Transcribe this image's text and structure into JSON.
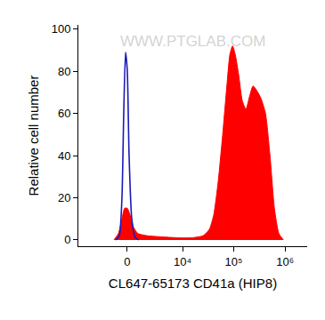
{
  "chart_data": {
    "type": "histogram",
    "xlabel": "CL647-65173 CD41a (HIP8)",
    "ylabel": "Relative cell number",
    "annotations": [
      {
        "text": "WWW.PTGLAB.COM"
      }
    ],
    "xlim": [
      -7500,
      2700000
    ],
    "xticks": [
      0,
      {
        "value": 10000,
        "label": "10⁴"
      },
      {
        "value": 100000,
        "label": "10⁵"
      },
      {
        "value": 1000000,
        "label": "10⁶"
      }
    ],
    "ylim": [
      -3,
      102
    ],
    "yticks": [
      0,
      20,
      40,
      60,
      80,
      100
    ],
    "grid": false,
    "series": [
      {
        "type": "area",
        "color": "#ff0000",
        "x": [
          -1076,
          -694,
          -410,
          -203,
          0,
          203,
          479,
          843,
          1694,
          3437,
          8218,
          15044,
          25306,
          33500,
          40900,
          50000,
          61000,
          74700,
          84200,
          95000,
          107000,
          125400,
          147000,
          173000,
          203000,
          238000,
          279000,
          341000,
          416000,
          509000,
          621000,
          758000,
          927000
        ],
        "values": [
          0,
          3,
          10,
          15,
          15,
          12,
          6,
          3,
          2,
          1.5,
          1,
          1,
          2,
          5,
          12,
          28,
          50,
          75,
          88,
          92,
          88,
          78,
          66,
          62,
          68,
          73,
          71,
          67,
          60,
          40,
          15,
          3,
          0
        ]
      },
      {
        "type": "line",
        "color": "#1a1ab8",
        "x": [
          -916,
          -622,
          -410,
          -272,
          -135,
          0,
          135,
          340,
          622,
          916
        ],
        "values": [
          0,
          2,
          20,
          60,
          89,
          80,
          40,
          10,
          1,
          0
        ]
      }
    ]
  }
}
